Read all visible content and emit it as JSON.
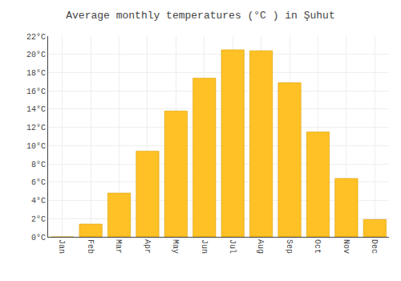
{
  "chart_data": {
    "type": "bar",
    "title": "Average monthly temperatures (°C ) in Şuhut",
    "categories": [
      "Jan",
      "Feb",
      "Mar",
      "Apr",
      "May",
      "Jun",
      "Jul",
      "Aug",
      "Sep",
      "Oct",
      "Nov",
      "Dec"
    ],
    "values": [
      0.0,
      1.4,
      4.8,
      9.4,
      13.8,
      17.4,
      20.5,
      20.4,
      16.9,
      11.5,
      6.4,
      1.9
    ],
    "color": "#FFC125",
    "ylim": [
      0,
      22
    ],
    "yticks": [
      {
        "value": 0,
        "label": "0°C"
      },
      {
        "value": 2,
        "label": "2°C"
      },
      {
        "value": 4,
        "label": "4°C"
      },
      {
        "value": 6,
        "label": "6°C"
      },
      {
        "value": 8,
        "label": "8°C"
      },
      {
        "value": 10,
        "label": "10°C"
      },
      {
        "value": 12,
        "label": "12°C"
      },
      {
        "value": 14,
        "label": "14°C"
      },
      {
        "value": 16,
        "label": "16°C"
      },
      {
        "value": 18,
        "label": "18°C"
      },
      {
        "value": 20,
        "label": "20°C"
      },
      {
        "value": 22,
        "label": "22°C"
      }
    ],
    "grid": true
  }
}
